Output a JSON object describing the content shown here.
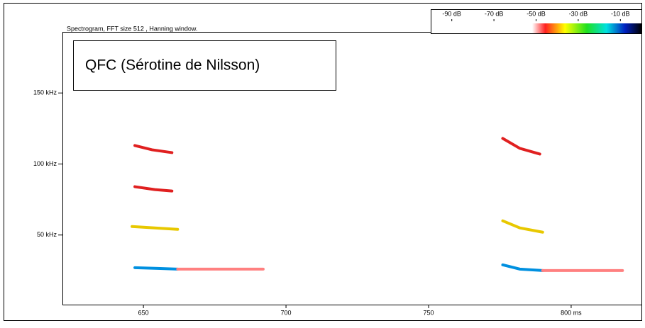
{
  "chart_data": {
    "type": "spectrogram",
    "subtitle": "Spectrogram, FFT size 512 , Hanning window.",
    "annotation": "QFC (Sérotine de Nilsson)",
    "xlim": [
      621.6,
      824.9
    ],
    "xticks": [
      650,
      700,
      750,
      {
        "value": 800,
        "label": "800 ms"
      }
    ],
    "ylim": [
      1,
      193
    ],
    "yticks": [
      {
        "value": 50,
        "label": "50 kHz"
      },
      {
        "value": 100,
        "label": "100 kHz"
      },
      {
        "value": 150,
        "label": "150 kHz"
      }
    ],
    "colorbar": {
      "lim": [
        -100,
        0
      ],
      "ticks": [
        {
          "value": -90,
          "label": "-90 dB"
        },
        {
          "value": -70,
          "label": "-70 dB"
        },
        {
          "value": -50,
          "label": "-50 dB"
        },
        {
          "value": -30,
          "label": "-30 dB"
        },
        {
          "value": -10,
          "label": "-10 dB"
        }
      ]
    },
    "series": [
      {
        "color": "#0090e0",
        "x": [
          647,
          655,
          662
        ],
        "y": [
          27,
          26.5,
          26
        ]
      },
      {
        "color": "#e8c800",
        "x": [
          646,
          654,
          662
        ],
        "y": [
          56,
          55,
          54
        ]
      },
      {
        "color": "#e02020",
        "x": [
          647,
          654,
          660
        ],
        "y": [
          84,
          82,
          81
        ]
      },
      {
        "color": "#e02020",
        "x": [
          647,
          653,
          660
        ],
        "y": [
          113,
          110,
          108
        ]
      },
      {
        "color": "#ff8080",
        "x": [
          662,
          692
        ],
        "y": [
          26,
          26
        ]
      },
      {
        "color": "#0090e0",
        "x": [
          776,
          782,
          790
        ],
        "y": [
          29,
          26,
          25
        ]
      },
      {
        "color": "#e8c800",
        "x": [
          776,
          782,
          790
        ],
        "y": [
          60,
          55,
          52
        ]
      },
      {
        "color": "#e02020",
        "x": [
          776,
          782,
          789
        ],
        "y": [
          118,
          111,
          107
        ]
      },
      {
        "color": "#ff8080",
        "x": [
          790,
          818
        ],
        "y": [
          25,
          25
        ]
      }
    ]
  }
}
